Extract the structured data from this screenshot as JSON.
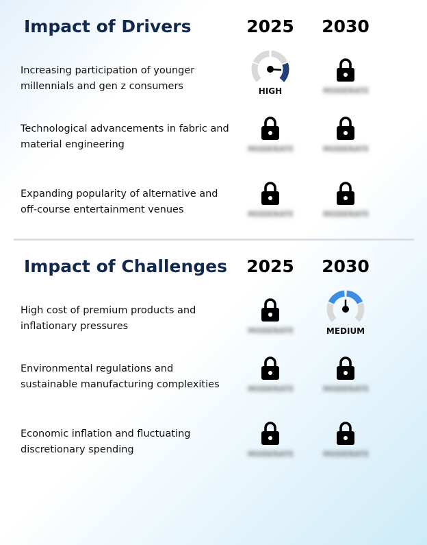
{
  "drivers": {
    "title": "Impact of Drivers",
    "years": [
      "2025",
      "2030"
    ],
    "rows": [
      {
        "label": "Increasing participation of younger millennials and gen z consumers",
        "cells": [
          {
            "type": "gauge",
            "level": "high",
            "label": "HIGH",
            "color": "#233f7a"
          },
          {
            "type": "lock",
            "hidden_label": "MODERATE"
          }
        ]
      },
      {
        "label": "Technological advancements in fabric and material engineering",
        "cells": [
          {
            "type": "lock",
            "hidden_label": "MODERATE"
          },
          {
            "type": "lock",
            "hidden_label": "MODERATE"
          }
        ]
      },
      {
        "label": "Expanding popularity of alternative and off-course entertainment venues",
        "cells": [
          {
            "type": "lock",
            "hidden_label": "MODERATE"
          },
          {
            "type": "lock",
            "hidden_label": "MODERATE"
          }
        ]
      }
    ]
  },
  "challenges": {
    "title": "Impact of Challenges",
    "years": [
      "2025",
      "2030"
    ],
    "rows": [
      {
        "label": "High cost of premium products and inflationary pressures",
        "cells": [
          {
            "type": "lock",
            "hidden_label": "MODERATE"
          },
          {
            "type": "gauge",
            "level": "medium",
            "label": "MEDIUM",
            "color": "#3d8de0"
          }
        ]
      },
      {
        "label": "Environmental regulations and sustainable manufacturing complexities",
        "cells": [
          {
            "type": "lock",
            "hidden_label": "MODERATE"
          },
          {
            "type": "lock",
            "hidden_label": "MODERATE"
          }
        ]
      },
      {
        "label": "Economic inflation and fluctuating discretionary spending",
        "cells": [
          {
            "type": "lock",
            "hidden_label": "MODERATE"
          },
          {
            "type": "lock",
            "hidden_label": "MODERATE"
          }
        ]
      }
    ]
  },
  "colors": {
    "title": "#13294b",
    "gauge_track": "#d9d9d9",
    "lock": "#000000",
    "divider": "#dcdfe3"
  },
  "icons": [
    "lock-icon",
    "gauge-icon"
  ]
}
